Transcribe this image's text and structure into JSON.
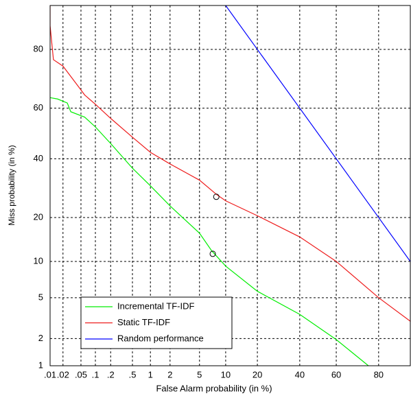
{
  "chart_data": {
    "type": "det",
    "scale": "probit",
    "xlabel": "False Alarm probability (in %)",
    "ylabel": "Miss probability (in %)",
    "xlim": [
      0.01,
      90
    ],
    "ylim": [
      1,
      90
    ],
    "xticks": [
      {
        "value": 0.01,
        "label": ".01"
      },
      {
        "value": 0.02,
        "label": ".02"
      },
      {
        "value": 0.05,
        "label": ".05"
      },
      {
        "value": 0.1,
        "label": ".1"
      },
      {
        "value": 0.2,
        "label": ".2"
      },
      {
        "value": 0.5,
        "label": ".5"
      },
      1,
      2,
      5,
      10,
      20,
      40,
      60,
      80
    ],
    "yticks": [
      1,
      2,
      5,
      10,
      20,
      40,
      60,
      80
    ],
    "grid": true,
    "legend": "lower left",
    "series": [
      {
        "name": "Incremental TF-IDF",
        "color": "#00ee00",
        "x": [
          0.01,
          0.015,
          0.025,
          0.03,
          0.06,
          0.1,
          0.2,
          0.5,
          1,
          2,
          5,
          7,
          10,
          20,
          40,
          60,
          75.8
        ],
        "values": [
          64,
          63.5,
          62,
          58.6,
          56.5,
          52.6,
          46,
          36.4,
          30,
          23.4,
          15.9,
          12,
          9.2,
          5.7,
          3.5,
          1.95,
          1
        ]
      },
      {
        "name": "Static TF-IDF",
        "color": "#ee1c1c",
        "x": [
          0.01,
          0.01,
          0.012,
          0.02,
          0.04,
          0.06,
          0.1,
          0.2,
          0.5,
          1,
          2,
          5,
          8,
          10,
          20,
          40,
          60,
          80,
          90
        ],
        "values": [
          90,
          86,
          77,
          75,
          69,
          65,
          61.5,
          56,
          48.5,
          42.5,
          38,
          32,
          27,
          25,
          20.5,
          15,
          10,
          5,
          3
        ]
      },
      {
        "name": "Random performance",
        "color": "#0000ff",
        "x": [
          10,
          90
        ],
        "values": [
          90,
          10
        ]
      }
    ],
    "markers": [
      {
        "x": 7.9,
        "y": 26.3
      },
      {
        "x": 7.2,
        "y": 11.4
      }
    ]
  }
}
